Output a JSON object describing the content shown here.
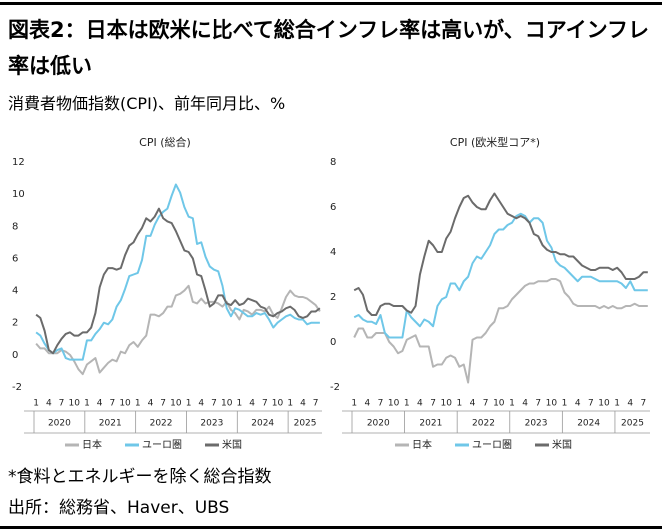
{
  "title": "図表2：日本は欧米に比べて総合インフレ率は高いが、コアインフレ率は低い",
  "subtitle": "消費者物価指数(CPI)、前年同月比、%",
  "note": "*食料とエネルギーを除く総合指数",
  "source": "出所：総務省、Haver、UBS",
  "chart_data": [
    {
      "type": "line",
      "title": "CPI (総合)",
      "categories": [
        "1",
        null,
        null,
        "4",
        null,
        null,
        "7",
        null,
        null,
        "10",
        null,
        null,
        "1",
        null,
        null,
        "4",
        null,
        null,
        "7",
        null,
        null,
        "10",
        null,
        null,
        "1",
        null,
        null,
        "4",
        null,
        null,
        "7",
        null,
        null,
        "10",
        null,
        null,
        "1",
        null,
        null,
        "4",
        null,
        null,
        "7",
        null,
        null,
        "10",
        null,
        null,
        "1",
        null,
        null,
        "4",
        null,
        null,
        "7",
        null,
        null,
        "10",
        null,
        null,
        "1",
        null,
        null,
        "4",
        null,
        null,
        "7",
        null
      ],
      "year_labels": [
        "2020",
        "2021",
        "2022",
        "2023",
        "2024",
        "2025"
      ],
      "ylim": [
        -2,
        12
      ],
      "yticks": [
        -2,
        0,
        2,
        4,
        6,
        8,
        10,
        12
      ],
      "grid": false,
      "legend": "bottom",
      "series": [
        {
          "name": "日本",
          "color": "#b5b5b5",
          "values": [
            0.7,
            0.4,
            0.4,
            0.1,
            0.1,
            0.1,
            0.3,
            0.2,
            0,
            -0.4,
            -0.9,
            -1.2,
            -0.6,
            -0.4,
            -0.2,
            -1.1,
            -0.8,
            -0.5,
            -0.3,
            -0.4,
            0.2,
            0.1,
            0.6,
            0.8,
            0.5,
            0.9,
            1.2,
            2.5,
            2.5,
            2.4,
            2.6,
            3.0,
            3.0,
            3.7,
            3.8,
            4.0,
            4.3,
            3.3,
            3.2,
            3.5,
            3.2,
            3.3,
            3.3,
            3.2,
            3.0,
            3.3,
            2.8,
            2.6,
            2.2,
            2.8,
            2.7,
            2.5,
            2.8,
            2.8,
            2.7,
            3.0,
            2.5,
            2.3,
            2.9,
            3.6,
            4.0,
            3.7,
            3.6,
            3.6,
            3.5,
            3.3,
            3.1,
            2.7
          ]
        },
        {
          "name": "ユーロ圏",
          "color": "#6fc7e8",
          "values": [
            1.4,
            1.2,
            0.7,
            0.3,
            0.1,
            0.3,
            0.4,
            -0.2,
            -0.3,
            -0.3,
            -0.3,
            -0.3,
            0.9,
            0.9,
            1.3,
            1.6,
            2.0,
            1.9,
            2.2,
            3.0,
            3.4,
            4.1,
            4.9,
            5.0,
            5.1,
            5.9,
            7.4,
            7.4,
            8.1,
            8.6,
            8.9,
            9.1,
            9.9,
            10.6,
            10.1,
            9.2,
            8.6,
            8.5,
            6.9,
            7.0,
            6.1,
            5.5,
            5.3,
            5.2,
            4.3,
            2.9,
            2.4,
            2.9,
            2.8,
            2.6,
            2.4,
            2.4,
            2.6,
            2.5,
            2.6,
            2.2,
            1.7,
            2.0,
            2.2,
            2.4,
            2.5,
            2.3,
            2.2,
            2.2,
            1.9,
            2.0,
            2.0,
            2.0
          ]
        },
        {
          "name": "米国",
          "color": "#6b6b6b",
          "values": [
            2.5,
            2.3,
            1.5,
            0.3,
            0.1,
            0.6,
            1.0,
            1.3,
            1.4,
            1.2,
            1.2,
            1.4,
            1.4,
            1.7,
            2.6,
            4.2,
            5.0,
            5.4,
            5.4,
            5.3,
            5.4,
            6.2,
            6.8,
            7.0,
            7.5,
            7.9,
            8.5,
            8.3,
            8.6,
            9.1,
            8.5,
            8.3,
            8.2,
            7.7,
            7.1,
            6.5,
            6.4,
            6.0,
            5.0,
            4.9,
            4.0,
            3.0,
            3.2,
            3.7,
            3.7,
            3.2,
            3.1,
            3.4,
            3.1,
            3.2,
            3.5,
            3.4,
            3.3,
            3.0,
            2.9,
            2.5,
            2.4,
            2.6,
            2.7,
            2.9,
            3.0,
            2.8,
            2.4,
            2.3,
            2.4,
            2.7,
            2.7,
            2.9
          ]
        }
      ]
    },
    {
      "type": "line",
      "title": "CPI (欧米型コア*)",
      "categories": [
        "1",
        null,
        null,
        "4",
        null,
        null,
        "7",
        null,
        null,
        "10",
        null,
        null,
        "1",
        null,
        null,
        "4",
        null,
        null,
        "7",
        null,
        null,
        "10",
        null,
        null,
        "1",
        null,
        null,
        "4",
        null,
        null,
        "7",
        null,
        null,
        "10",
        null,
        null,
        "1",
        null,
        null,
        "4",
        null,
        null,
        "7",
        null,
        null,
        "10",
        null,
        null,
        "1",
        null,
        null,
        "4",
        null,
        null,
        "7",
        null,
        null,
        "10",
        null,
        null,
        "1",
        null,
        null,
        "4",
        null,
        null,
        "7",
        null
      ],
      "year_labels": [
        "2020",
        "2021",
        "2022",
        "2023",
        "2024",
        "2025"
      ],
      "ylim": [
        -2,
        8
      ],
      "yticks": [
        -2,
        0,
        2,
        4,
        6,
        8
      ],
      "grid": false,
      "legend": "bottom",
      "series": [
        {
          "name": "日本",
          "color": "#b5b5b5",
          "values": [
            0.2,
            0.6,
            0.6,
            0.2,
            0.2,
            0.4,
            0.4,
            0.4,
            0,
            -0.2,
            -0.5,
            -0.4,
            0.1,
            0.2,
            0.3,
            -0.2,
            -0.2,
            -0.2,
            -1.1,
            -1.0,
            -1.0,
            -0.7,
            -0.6,
            -0.7,
            -1.1,
            -1.0,
            -1.8,
            0.1,
            0.2,
            0.2,
            0.4,
            0.7,
            0.9,
            1.5,
            1.5,
            1.6,
            1.9,
            2.1,
            2.3,
            2.5,
            2.6,
            2.6,
            2.7,
            2.7,
            2.7,
            2.8,
            2.8,
            2.7,
            2.2,
            2.0,
            1.7,
            1.6,
            1.6,
            1.6,
            1.6,
            1.6,
            1.5,
            1.6,
            1.5,
            1.6,
            1.5,
            1.5,
            1.6,
            1.6,
            1.7,
            1.6,
            1.6,
            1.6
          ]
        },
        {
          "name": "ユーロ圏",
          "color": "#6fc7e8",
          "values": [
            1.1,
            1.2,
            1.0,
            0.9,
            0.9,
            0.8,
            1.2,
            0.4,
            0.2,
            0.2,
            0.2,
            0.2,
            1.4,
            1.1,
            0.9,
            0.7,
            1.0,
            0.9,
            0.7,
            1.6,
            1.9,
            2.0,
            2.6,
            2.6,
            2.3,
            2.7,
            2.9,
            3.5,
            3.8,
            3.7,
            4.0,
            4.3,
            4.8,
            5.0,
            5.0,
            5.2,
            5.3,
            5.6,
            5.7,
            5.6,
            5.3,
            5.5,
            5.5,
            5.3,
            4.5,
            4.2,
            3.6,
            3.4,
            3.3,
            3.1,
            2.9,
            2.7,
            2.9,
            2.9,
            2.9,
            2.8,
            2.7,
            2.7,
            2.7,
            2.7,
            2.7,
            2.6,
            2.4,
            2.7,
            2.3,
            2.3,
            2.3,
            2.3
          ]
        },
        {
          "name": "米国",
          "color": "#6b6b6b",
          "values": [
            2.3,
            2.4,
            2.1,
            1.4,
            1.2,
            1.2,
            1.6,
            1.7,
            1.7,
            1.6,
            1.6,
            1.6,
            1.4,
            1.3,
            1.6,
            3.0,
            3.8,
            4.5,
            4.3,
            4.0,
            4.0,
            4.6,
            4.9,
            5.5,
            6.0,
            6.4,
            6.5,
            6.2,
            6.0,
            5.9,
            5.9,
            6.3,
            6.6,
            6.3,
            6.0,
            5.7,
            5.6,
            5.5,
            5.6,
            5.5,
            5.3,
            4.8,
            4.7,
            4.3,
            4.1,
            4.0,
            4.0,
            3.9,
            3.9,
            3.8,
            3.8,
            3.6,
            3.4,
            3.3,
            3.2,
            3.2,
            3.3,
            3.3,
            3.3,
            3.2,
            3.3,
            3.1,
            2.8,
            2.8,
            2.8,
            2.9,
            3.1,
            3.1
          ]
        }
      ]
    }
  ]
}
